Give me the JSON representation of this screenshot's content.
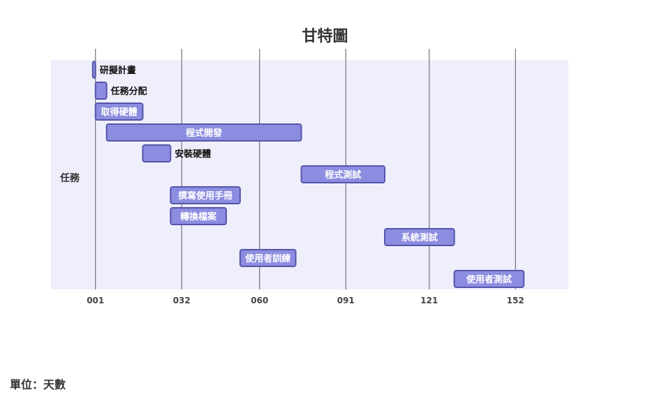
{
  "chart_data": {
    "type": "gantt",
    "title": "甘特圖",
    "ylabel": "任務",
    "unit_note": "單位：天數",
    "xlim": [
      -15,
      171
    ],
    "x_ticks": [
      "001",
      "032",
      "060",
      "091",
      "121",
      "152"
    ],
    "x_tick_values": [
      1,
      32,
      60,
      91,
      121,
      152
    ],
    "grid": true,
    "tasks": [
      {
        "name": "研擬計畫",
        "start": 0,
        "end": 1
      },
      {
        "name": "任務分配",
        "start": 1,
        "end": 5
      },
      {
        "name": "取得硬體",
        "start": 1,
        "end": 18
      },
      {
        "name": "程式開發",
        "start": 5,
        "end": 75
      },
      {
        "name": "安裝硬體",
        "start": 18,
        "end": 28
      },
      {
        "name": "程式測試",
        "start": 75,
        "end": 105
      },
      {
        "name": "撰寫使用手冊",
        "start": 28,
        "end": 53
      },
      {
        "name": "轉換檔案",
        "start": 28,
        "end": 48
      },
      {
        "name": "系統測試",
        "start": 105,
        "end": 130
      },
      {
        "name": "使用者訓練",
        "start": 53,
        "end": 73
      },
      {
        "name": "使用者測試",
        "start": 130,
        "end": 155
      }
    ],
    "colors": {
      "plot_background": "#efeffc",
      "bar_fill": "#8c8ce0",
      "bar_stroke": "#5555aa",
      "grid": "#555566",
      "label_inside": "#ffffff",
      "label_outside": "#111111"
    }
  }
}
